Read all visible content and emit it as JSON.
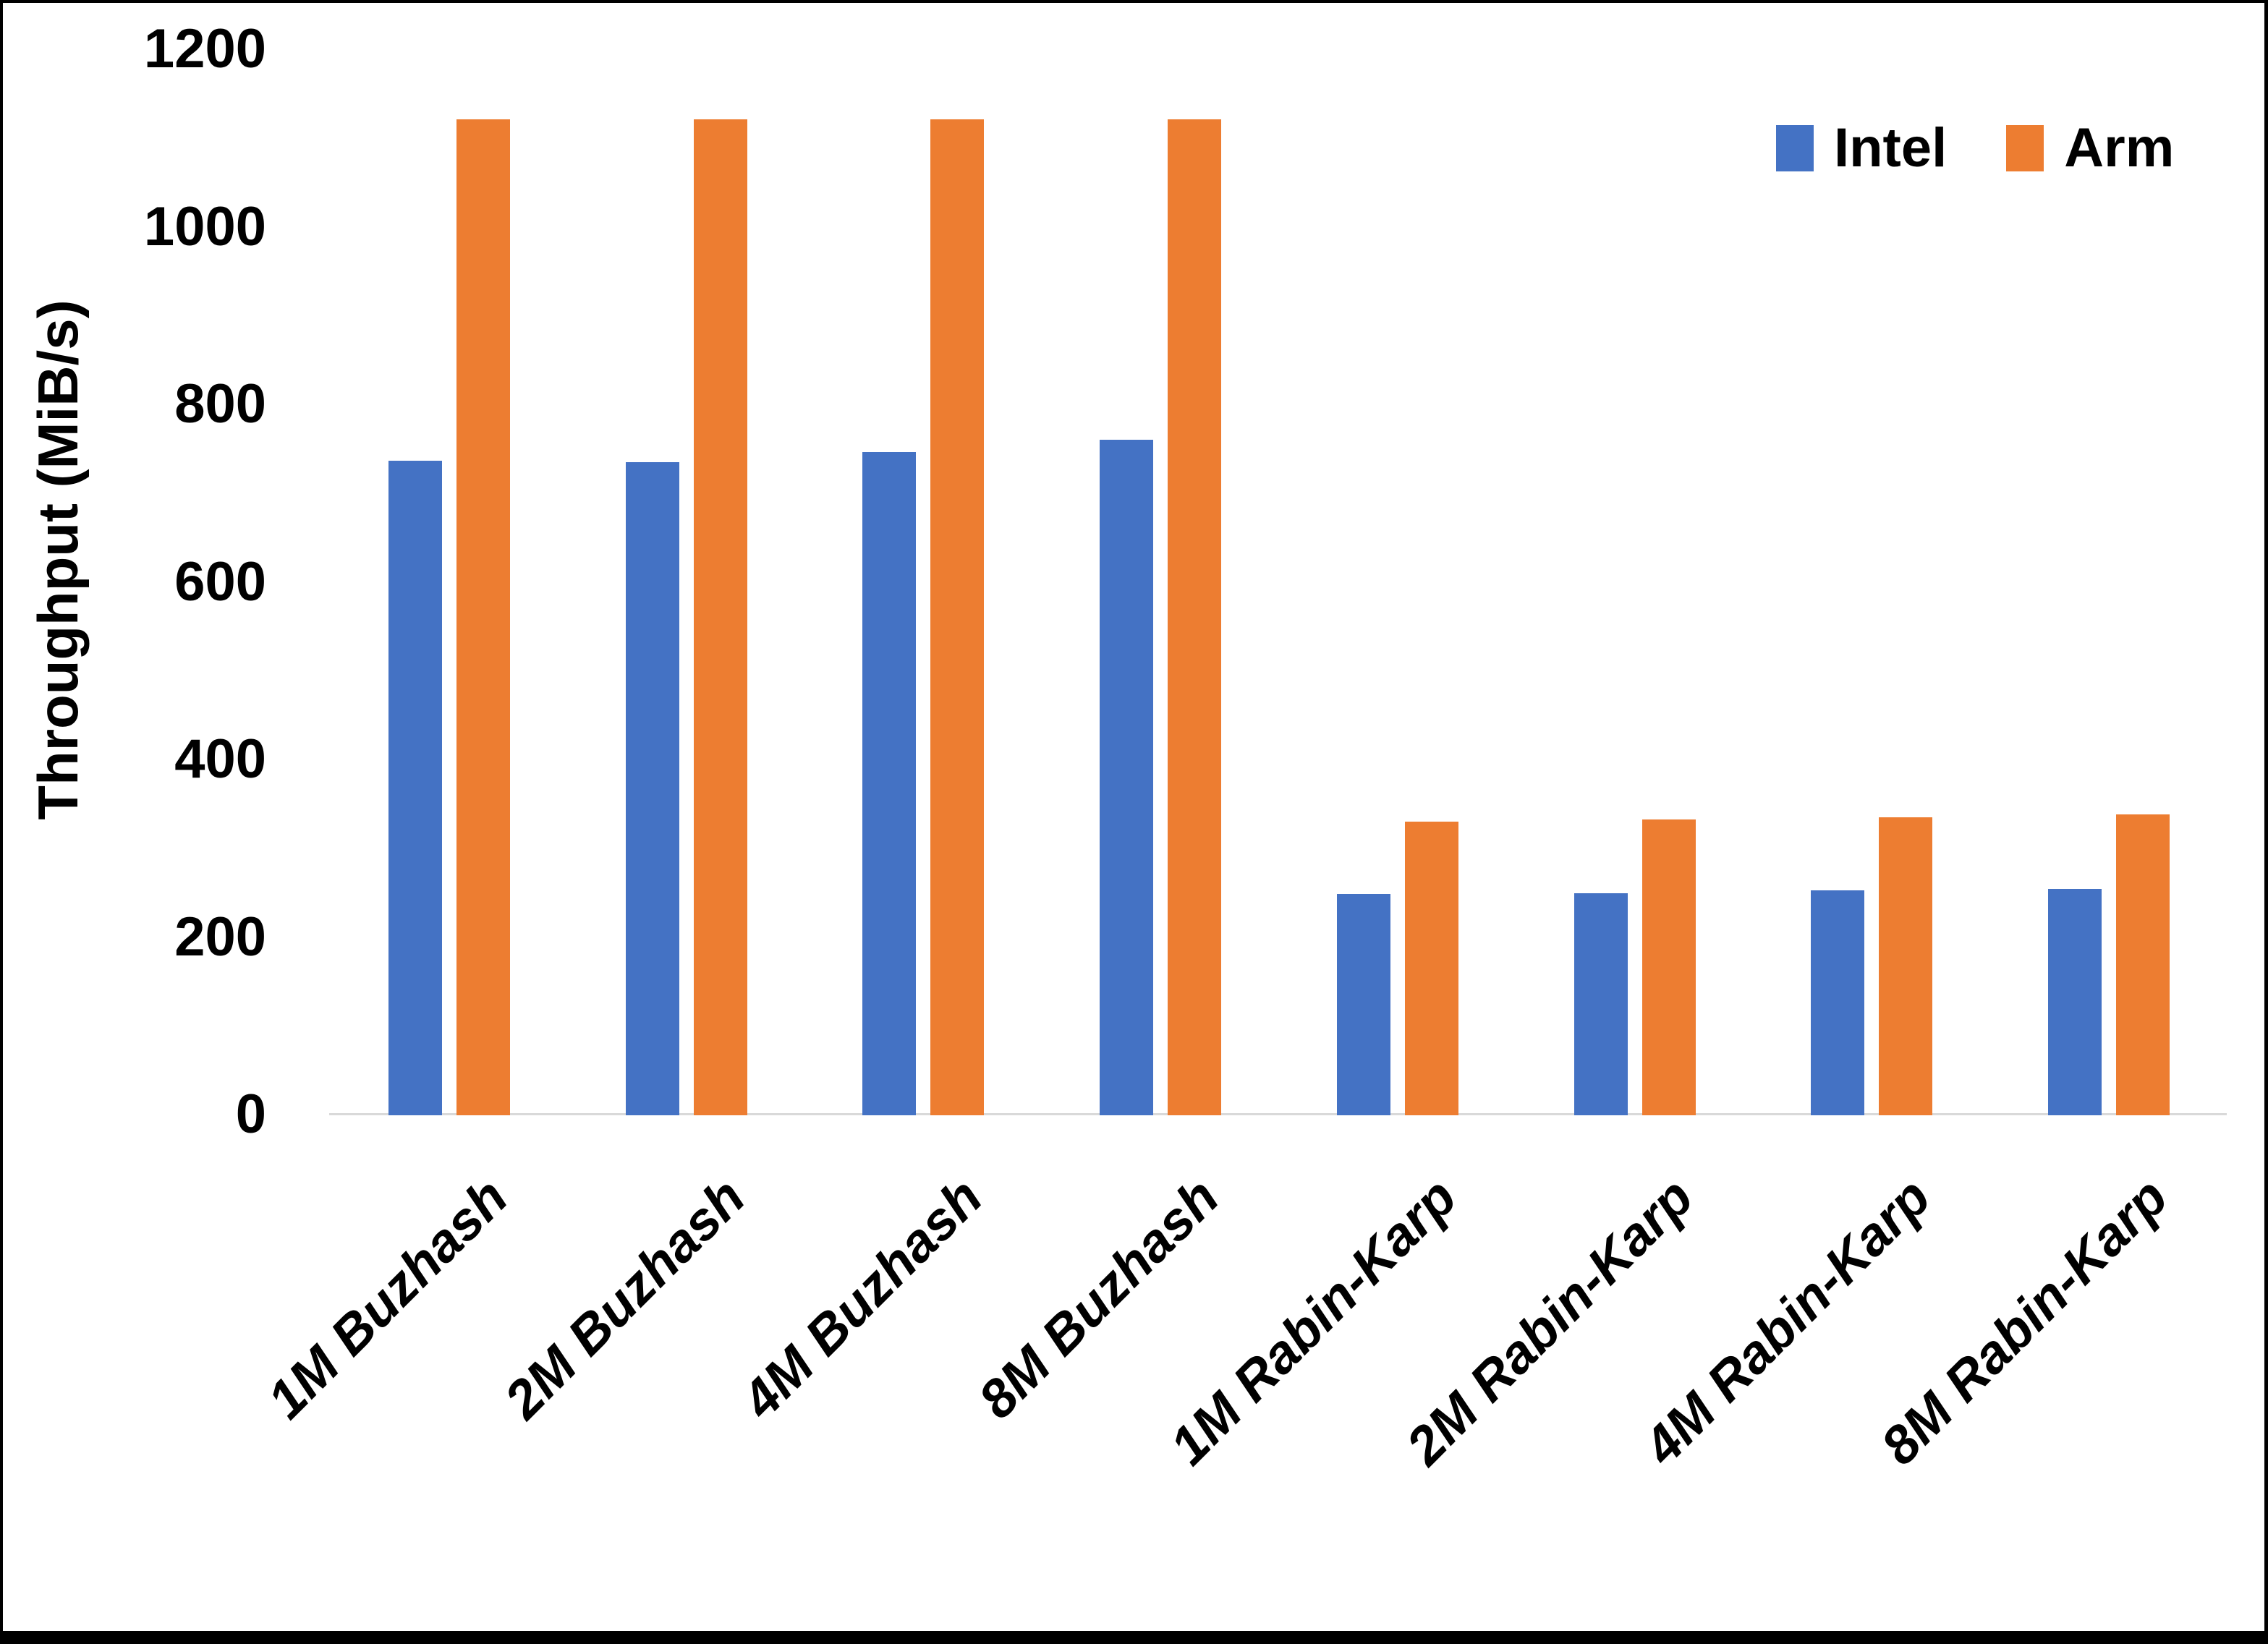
{
  "figure": {
    "background": "#FFFFFF",
    "frame_color": "#000000",
    "axis_line_color": "#D9D9D9",
    "text_color": "#000000"
  },
  "y_axis": {
    "title": "Throughput (MiB/s)",
    "ticks": [
      0,
      200,
      400,
      600,
      800,
      1000,
      1200
    ]
  },
  "legend": {
    "position": "top-right",
    "items": [
      {
        "label": "Intel",
        "color": "#4472C4"
      },
      {
        "label": "Arm",
        "color": "#ED7D31"
      }
    ]
  },
  "chart_data": {
    "type": "bar",
    "title": "",
    "xlabel": "",
    "ylabel": "Throughput (MiB/s)",
    "ylim": [
      0,
      1200
    ],
    "tick_step": 200,
    "grid": false,
    "legend_position": "top-right",
    "categories": [
      "1M Buzhash",
      "2M Buzhash",
      "4M Buzhash",
      "8M Buzhash",
      "1M Rabin-Karp",
      "2M Rabin-Karp",
      "4M Rabin-Karp",
      "8M Rabin-Karp"
    ],
    "series": [
      {
        "name": "Intel",
        "color": "#4472C4",
        "values": [
          737,
          736,
          747,
          761,
          249,
          250,
          253,
          255
        ]
      },
      {
        "name": "Arm",
        "color": "#ED7D31",
        "values": [
          1122,
          1122,
          1122,
          1122,
          331,
          333,
          336,
          339
        ]
      }
    ]
  }
}
